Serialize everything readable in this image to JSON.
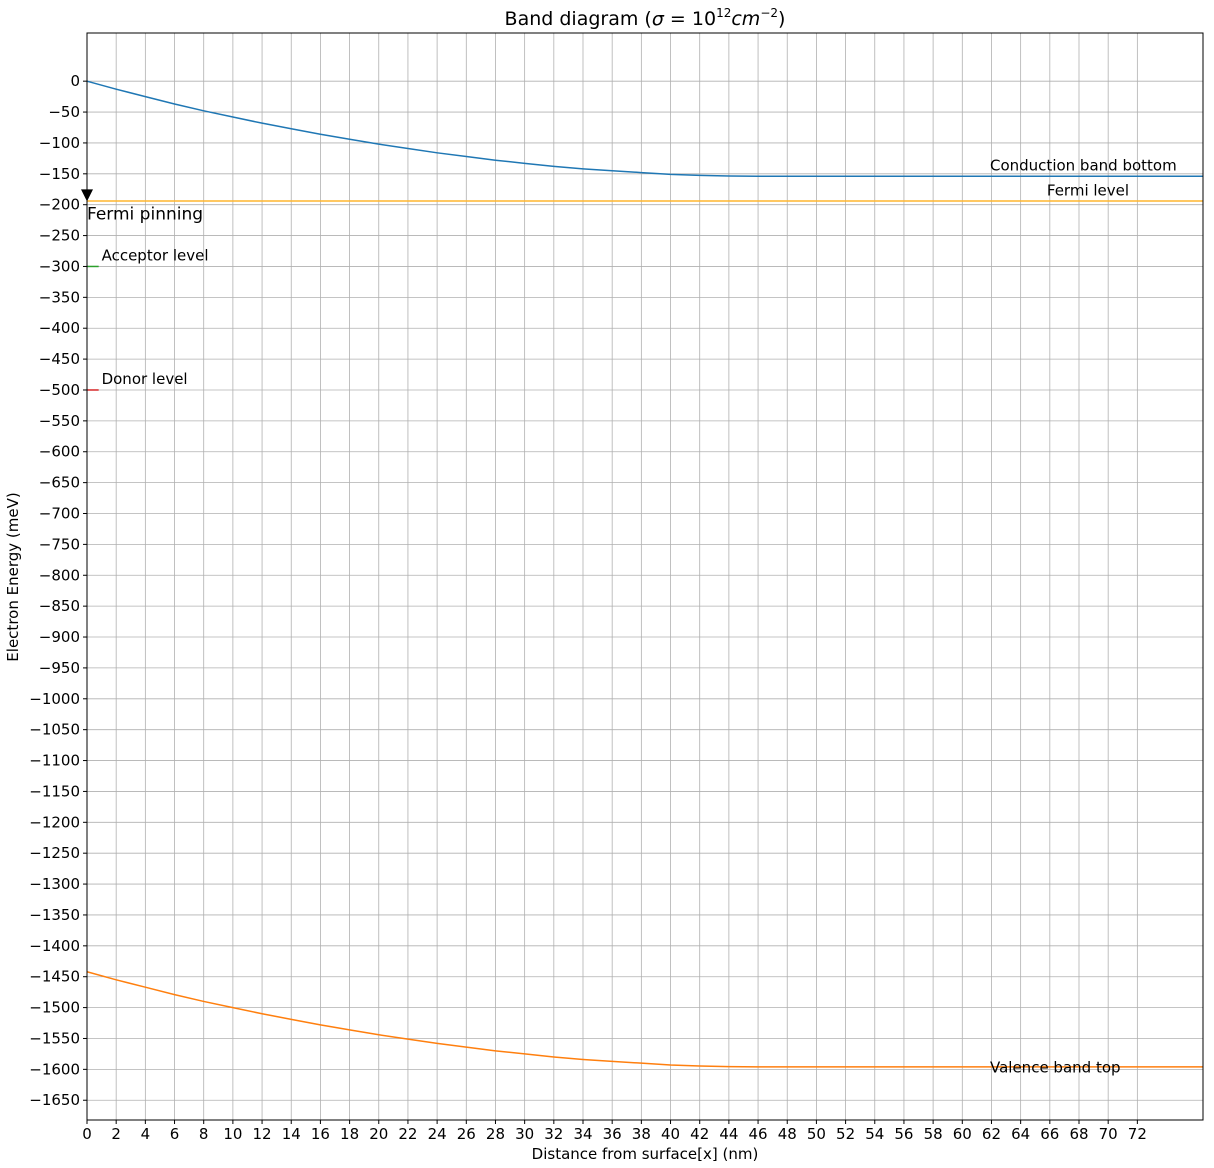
{
  "chart_data": {
    "type": "line",
    "title": {
      "prefix": "Band diagram (",
      "sigma": "σ",
      "equals": " = 10",
      "exponent1": "12",
      "unit": "cm",
      "exponent2": "−2",
      "suffix": ")"
    },
    "xlabel": "Distance from surface[x] (nm)",
    "ylabel": "Electron Energy (meV)",
    "xlim": [
      0,
      76.5
    ],
    "ylim": [
      -1682,
      78
    ],
    "xticks": [
      0,
      2,
      4,
      6,
      8,
      10,
      12,
      14,
      16,
      18,
      20,
      22,
      24,
      26,
      28,
      30,
      32,
      34,
      36,
      38,
      40,
      42,
      44,
      46,
      48,
      50,
      52,
      54,
      56,
      58,
      60,
      62,
      64,
      66,
      68,
      70,
      72
    ],
    "yticks": [
      0,
      -50,
      -100,
      -150,
      -200,
      -250,
      -300,
      -350,
      -400,
      -450,
      -500,
      -550,
      -600,
      -650,
      -700,
      -750,
      -800,
      -850,
      -900,
      -950,
      -1000,
      -1050,
      -1100,
      -1150,
      -1200,
      -1250,
      -1300,
      -1350,
      -1400,
      -1450,
      -1500,
      -1550,
      -1600,
      -1650
    ],
    "grid": true,
    "series": [
      {
        "name": "Conduction band bottom",
        "color": "#1f77b4",
        "x": [
          0,
          2,
          4,
          6,
          8,
          10,
          12,
          14,
          16,
          18,
          20,
          22,
          24,
          26,
          28,
          30,
          32,
          34,
          36,
          38,
          40,
          42,
          44,
          46,
          48,
          50,
          55,
          60,
          65,
          70,
          76.5
        ],
        "y": [
          0,
          -13,
          -25,
          -37,
          -48,
          -58,
          -68,
          -77,
          -86,
          -94,
          -102,
          -109,
          -116,
          -122,
          -128,
          -133,
          -138,
          -142,
          -145,
          -148,
          -151,
          -152.5,
          -153.5,
          -154,
          -154,
          -154,
          -154,
          -154,
          -154,
          -154,
          -154
        ]
      },
      {
        "name": "Fermi level",
        "color": "#ffb62e",
        "x": [
          0,
          76.5
        ],
        "y": [
          -194,
          -194
        ]
      },
      {
        "name": "Valence band top",
        "color": "#ff7f0e",
        "x": [
          0,
          2,
          4,
          6,
          8,
          10,
          12,
          14,
          16,
          18,
          20,
          22,
          24,
          26,
          28,
          30,
          32,
          34,
          36,
          38,
          40,
          42,
          44,
          46,
          48,
          50,
          55,
          60,
          65,
          70,
          76.5
        ],
        "y": [
          -1442,
          -1455,
          -1467,
          -1479,
          -1490,
          -1500,
          -1510,
          -1519,
          -1528,
          -1536,
          -1544,
          -1551,
          -1558,
          -1564,
          -1570,
          -1575,
          -1580,
          -1584,
          -1587,
          -1590,
          -1593,
          -1594.5,
          -1595.5,
          -1596,
          -1596,
          -1596,
          -1596,
          -1596,
          -1596,
          -1596,
          -1596
        ]
      },
      {
        "name": "Acceptor level",
        "color": "#2ca02c",
        "x": [
          0,
          0.8
        ],
        "y": [
          -300,
          -300
        ]
      },
      {
        "name": "Donor level",
        "color": "#d62728",
        "x": [
          0,
          0.8
        ],
        "y": [
          -500,
          -500
        ]
      }
    ],
    "marker": {
      "label": "Fermi pinning",
      "x": 0,
      "y": -185,
      "shape": "triangle-down",
      "color": "#000000"
    },
    "annotations": [
      {
        "text": "Conduction band bottom",
        "x": 61.9,
        "y": -145
      },
      {
        "text": "Fermi level",
        "x": 65.8,
        "y": -185
      },
      {
        "text": "Acceptor level",
        "x": 1.0,
        "y": -290
      },
      {
        "text": "Donor level",
        "x": 1.0,
        "y": -490
      },
      {
        "text": "Valence band top",
        "x": 61.9,
        "y": -1605
      }
    ]
  }
}
